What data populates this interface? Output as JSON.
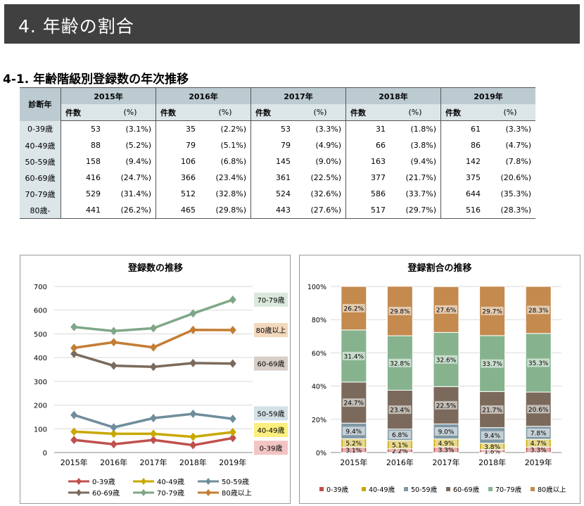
{
  "header": {
    "title": "4.  年齢の割合"
  },
  "section": {
    "title": "4-1.  年齢階級別登録数の年次推移"
  },
  "table": {
    "corner": "診断年",
    "years": [
      "2015年",
      "2016年",
      "2017年",
      "2018年",
      "2019年"
    ],
    "count_label": "件数",
    "pct_label": "(%)",
    "rows": [
      {
        "label": "0-39歳",
        "cells": [
          [
            "53",
            "(3.1%)"
          ],
          [
            "35",
            "(2.2%)"
          ],
          [
            "53",
            "(3.3%)"
          ],
          [
            "31",
            "(1.8%)"
          ],
          [
            "61",
            "(3.3%)"
          ]
        ]
      },
      {
        "label": "40-49歳",
        "cells": [
          [
            "88",
            "(5.2%)"
          ],
          [
            "79",
            "(5.1%)"
          ],
          [
            "79",
            "(4.9%)"
          ],
          [
            "66",
            "(3.8%)"
          ],
          [
            "86",
            "(4.7%)"
          ]
        ]
      },
      {
        "label": "50-59歳",
        "cells": [
          [
            "158",
            "(9.4%)"
          ],
          [
            "106",
            "(6.8%)"
          ],
          [
            "145",
            "(9.0%)"
          ],
          [
            "163",
            "(9.4%)"
          ],
          [
            "142",
            "(7.8%)"
          ]
        ]
      },
      {
        "label": "60-69歳",
        "cells": [
          [
            "416",
            "(24.7%)"
          ],
          [
            "366",
            "(23.4%)"
          ],
          [
            "361",
            "(22.5%)"
          ],
          [
            "377",
            "(21.7%)"
          ],
          [
            "375",
            "(20.6%)"
          ]
        ]
      },
      {
        "label": "70-79歳",
        "cells": [
          [
            "529",
            "(31.4%)"
          ],
          [
            "512",
            "(32.8%)"
          ],
          [
            "524",
            "(32.6%)"
          ],
          [
            "586",
            "(33.7%)"
          ],
          [
            "644",
            "(35.3%)"
          ]
        ]
      },
      {
        "label": "80歳-",
        "cells": [
          [
            "441",
            "(26.2%)"
          ],
          [
            "465",
            "(29.8%)"
          ],
          [
            "443",
            "(27.6%)"
          ],
          [
            "517",
            "(29.7%)"
          ],
          [
            "516",
            "(28.3%)"
          ]
        ]
      }
    ]
  },
  "chart_data": [
    {
      "type": "line",
      "title": "登録数の推移",
      "categories": [
        "2015年",
        "2016年",
        "2017年",
        "2018年",
        "2019年"
      ],
      "ylim": [
        0,
        700
      ],
      "yticks": [
        "0",
        "100",
        "200",
        "300",
        "400",
        "500",
        "600",
        "700"
      ],
      "grid": true,
      "legend_position": "bottom",
      "series": [
        {
          "name": "0-39歳",
          "values": [
            53,
            35,
            53,
            31,
            61
          ],
          "color": "#c0504d",
          "end_label": "0-39歳",
          "label_bg": "#f2c4c4"
        },
        {
          "name": "40-49歳",
          "values": [
            88,
            79,
            79,
            66,
            86
          ],
          "color": "#c9a800",
          "end_label": "40-49歳",
          "label_bg": "#fcef7f"
        },
        {
          "name": "50-59歳",
          "values": [
            158,
            106,
            145,
            163,
            142
          ],
          "color": "#6f8d9c",
          "end_label": "50-59歳",
          "label_bg": "#d3e0e6"
        },
        {
          "name": "60-69歳",
          "values": [
            416,
            366,
            361,
            377,
            375
          ],
          "color": "#7b6a5c",
          "end_label": "60-69歳",
          "label_bg": "#d7cec8"
        },
        {
          "name": "70-79歳",
          "values": [
            529,
            512,
            524,
            586,
            644
          ],
          "color": "#7fa787",
          "end_label": "70-79歳",
          "label_bg": "#dbe9dd"
        },
        {
          "name": "80歳以上",
          "values": [
            441,
            465,
            443,
            517,
            516
          ],
          "color": "#c47d35",
          "end_label": "80歳以上",
          "label_bg": "#f2d8bd"
        }
      ]
    },
    {
      "type": "bar",
      "stacked": true,
      "title": "登録割合の推移",
      "categories": [
        "2015年",
        "2016年",
        "2017年",
        "2018年",
        "2019年"
      ],
      "ylim": [
        0,
        100
      ],
      "yticks": [
        "0%",
        "20%",
        "40%",
        "60%",
        "80%",
        "100%"
      ],
      "grid": true,
      "legend_position": "bottom",
      "series": [
        {
          "name": "0-39歳",
          "values": [
            3.1,
            2.2,
            3.3,
            1.8,
            3.3
          ],
          "labels": [
            "3.1%",
            "2.2%",
            "3.3%",
            "1.8%",
            "3.3%"
          ],
          "color": "#c0504d"
        },
        {
          "name": "40-49歳",
          "values": [
            5.2,
            5.1,
            4.9,
            3.8,
            4.7
          ],
          "labels": [
            "5.2%",
            "5.1%",
            "4.9%",
            "3.8%",
            "4.7%"
          ],
          "color": "#c9a800"
        },
        {
          "name": "50-59歳",
          "values": [
            9.4,
            6.8,
            9.0,
            9.4,
            7.8
          ],
          "labels": [
            "9.4%",
            "6.8%",
            "9.0%",
            "9.4%",
            "7.8%"
          ],
          "color": "#7f98a4"
        },
        {
          "name": "60-69歳",
          "values": [
            24.7,
            23.4,
            22.5,
            21.7,
            20.6
          ],
          "labels": [
            "24.7%",
            "23.4%",
            "22.5%",
            "21.7%",
            "20.6%"
          ],
          "color": "#7b6a5c"
        },
        {
          "name": "70-79歳",
          "values": [
            31.4,
            32.8,
            32.6,
            33.7,
            35.3
          ],
          "labels": [
            "31.4%",
            "32.8%",
            "32.6%",
            "33.7%",
            "35.3%"
          ],
          "color": "#86b38e"
        },
        {
          "name": "80歳以上",
          "values": [
            26.2,
            29.8,
            27.6,
            29.7,
            28.3
          ],
          "labels": [
            "26.2%",
            "29.8%",
            "27.6%",
            "29.7%",
            "28.3%"
          ],
          "color": "#c48a4e"
        }
      ]
    }
  ]
}
